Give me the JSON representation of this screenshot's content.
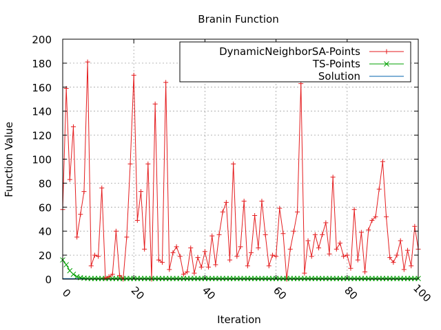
{
  "chart_data": {
    "type": "line",
    "title": "Branin Function",
    "xlabel": "Iteration",
    "ylabel": "Function Value",
    "xlim": [
      0,
      100
    ],
    "ylim": [
      0,
      200
    ],
    "xticks": [
      "0",
      "20",
      "40",
      "60",
      "80",
      "100"
    ],
    "yticks": [
      "0",
      "20",
      "40",
      "60",
      "80",
      "100",
      "120",
      "140",
      "160",
      "180",
      "200"
    ],
    "grid": true,
    "legend_position": "top-right",
    "series": [
      {
        "name": "DynamicNeighborSA-Points",
        "color": "#e41a1c",
        "marker": "plus",
        "x": [
          0,
          1,
          2,
          3,
          4,
          5,
          6,
          7,
          8,
          9,
          10,
          11,
          12,
          13,
          14,
          15,
          16,
          17,
          18,
          19,
          20,
          21,
          22,
          23,
          24,
          25,
          26,
          27,
          28,
          29,
          30,
          31,
          32,
          33,
          34,
          35,
          36,
          37,
          38,
          39,
          40,
          41,
          42,
          43,
          44,
          45,
          46,
          47,
          48,
          49,
          50,
          51,
          52,
          53,
          54,
          55,
          56,
          57,
          58,
          59,
          60,
          61,
          62,
          63,
          64,
          65,
          66,
          67,
          68,
          69,
          70,
          71,
          72,
          73,
          74,
          75,
          76,
          77,
          78,
          79,
          80,
          81,
          82,
          83,
          84,
          85,
          86,
          87,
          88,
          89,
          90,
          91,
          92,
          93,
          94,
          95,
          96,
          97,
          98,
          99,
          100
        ],
        "y": [
          58,
          159,
          83,
          127,
          35,
          54,
          73,
          181,
          11,
          20,
          19,
          76,
          1,
          2,
          4,
          40,
          3,
          0,
          35,
          96,
          170,
          49,
          73,
          25,
          96,
          0,
          146,
          16,
          14,
          164,
          8,
          22,
          27,
          19,
          4,
          6,
          26,
          5,
          18,
          10,
          23,
          10,
          36,
          12,
          37,
          56,
          64,
          16,
          96,
          19,
          27,
          65,
          11,
          22,
          53,
          26,
          65,
          37,
          11,
          20,
          19,
          59,
          38,
          0,
          25,
          40,
          56,
          163,
          5,
          32,
          19,
          37,
          26,
          37,
          47,
          21,
          85,
          25,
          30,
          19,
          20,
          9,
          58,
          16,
          39,
          6,
          41,
          49,
          52,
          75,
          98,
          52,
          18,
          14,
          20,
          32,
          8,
          24,
          11,
          44,
          25
        ]
      },
      {
        "name": "TS-Points",
        "color": "#00a000",
        "marker": "x",
        "x": [
          0,
          1,
          2,
          3,
          4,
          5,
          6,
          7,
          8,
          9,
          10,
          11,
          12,
          13,
          14,
          15,
          16,
          17,
          18,
          19,
          20,
          21,
          22,
          23,
          24,
          25,
          26,
          27,
          28,
          29,
          30,
          31,
          32,
          33,
          34,
          35,
          36,
          37,
          38,
          39,
          40,
          41,
          42,
          43,
          44,
          45,
          46,
          47,
          48,
          49,
          50,
          51,
          52,
          53,
          54,
          55,
          56,
          57,
          58,
          59,
          60,
          61,
          62,
          63,
          64,
          65,
          66,
          67,
          68,
          69,
          70,
          71,
          72,
          73,
          74,
          75,
          76,
          77,
          78,
          79,
          80,
          81,
          82,
          83,
          84,
          85,
          86,
          87,
          88,
          89,
          90,
          91,
          92,
          93,
          94,
          95,
          96,
          97,
          98,
          99,
          100
        ],
        "y": [
          16,
          12,
          7,
          4,
          2,
          1.2,
          0.8,
          0.6,
          0.5,
          0.5,
          0.5,
          0.5,
          0.5,
          0.5,
          0.5,
          0.5,
          0.5,
          0.5,
          0.5,
          0.5,
          0.5,
          0.5,
          0.5,
          0.5,
          0.5,
          0.5,
          0.5,
          0.5,
          0.5,
          0.5,
          0.5,
          0.5,
          0.5,
          0.5,
          0.5,
          0.5,
          0.5,
          0.5,
          0.5,
          0.5,
          0.5,
          0.5,
          0.5,
          0.5,
          0.5,
          0.5,
          0.5,
          0.5,
          0.5,
          0.5,
          0.5,
          0.5,
          0.5,
          0.5,
          0.5,
          0.5,
          0.5,
          0.5,
          0.5,
          0.5,
          0.5,
          0.5,
          0.5,
          0.5,
          0.5,
          0.5,
          0.5,
          0.5,
          0.5,
          0.5,
          0.5,
          0.5,
          0.5,
          0.5,
          0.5,
          0.5,
          0.5,
          0.5,
          0.5,
          0.5,
          0.5,
          0.5,
          0.5,
          0.5,
          0.5,
          0.5,
          0.5,
          0.5,
          0.5,
          0.5,
          0.5,
          0.5,
          0.5,
          0.5,
          0.5,
          0.5,
          0.5,
          0.5,
          0.5,
          0.5,
          0.5
        ]
      },
      {
        "name": "Solution",
        "color": "#0060ad",
        "marker": "none",
        "x": [
          0,
          100
        ],
        "y": [
          0.4,
          0.4
        ]
      }
    ]
  }
}
